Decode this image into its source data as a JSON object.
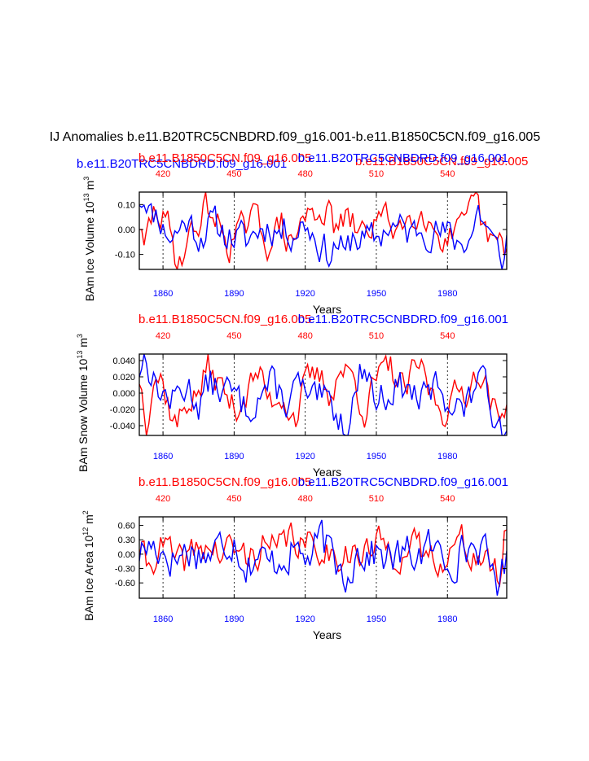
{
  "page_title": "IJ Anomalies b.e11.B20TRC5CNBDRD.f09_g16.001-b.e11.B1850C5CN.f09_g16.005",
  "colors": {
    "control": "#ff0000",
    "historical": "#0000ff",
    "axis": "#000000",
    "grid": "#000000"
  },
  "header_labels": {
    "historical_run": "b.e11.B20TRC5CNBDRD.f09_g16.001",
    "control_run": "b.e11.B1850C5CN.f09_g16.005"
  },
  "chart_data": [
    {
      "type": "line",
      "name": "ice-volume",
      "ylabel": "BAm Ice Volume 10",
      "ylabel_exp": "13",
      "ylabel_unit": " m",
      "ylabel_unit_exp": "3",
      "xlabel": "Years",
      "ylim": [
        -0.16,
        0.15
      ],
      "yticks": [
        -0.1,
        0.0,
        0.1
      ],
      "ytick_labels": [
        "-0.10",
        "0.00",
        "0.10"
      ],
      "bottom_ticks": [
        1860,
        1890,
        1920,
        1950,
        1980
      ],
      "bottom_tick_labels": [
        "1860",
        "1890",
        "1920",
        "1950",
        "1980"
      ],
      "top_ticks": [
        420,
        450,
        480,
        510,
        540
      ],
      "top_tick_labels": [
        "420",
        "450",
        "480",
        "510",
        "540"
      ],
      "xlim_bottom": [
        1850,
        2005
      ],
      "xlim_top": [
        410,
        565
      ],
      "title_left": "b.e11.B1850C5CN.f09_g16.005",
      "title_left_color": "control",
      "title_right": "b.e11.B20TRC5CNBDRD.f09_g16.001",
      "title_right_color": "historical",
      "series": [
        {
          "name": "b.e11.B20TRC5CNBDRD.f09_g16.001",
          "color": "historical",
          "x_start": 1850,
          "amp": 0.065,
          "seed": 11,
          "knots": [
            [
              0,
              0.13
            ],
            [
              3,
              0.14
            ],
            [
              5,
              0.06
            ],
            [
              8,
              0.07
            ],
            [
              10,
              0.01
            ],
            [
              14,
              -0.03
            ],
            [
              20,
              0.04
            ],
            [
              25,
              -0.02
            ],
            [
              30,
              0.02
            ],
            [
              38,
              -0.02
            ],
            [
              45,
              -0.05
            ],
            [
              50,
              0.0
            ],
            [
              55,
              0.02
            ],
            [
              60,
              -0.01
            ],
            [
              65,
              0.0
            ],
            [
              70,
              0.03
            ],
            [
              76,
              -0.05
            ],
            [
              80,
              -0.1
            ],
            [
              84,
              -0.05
            ],
            [
              87,
              -0.12
            ],
            [
              90,
              -0.02
            ],
            [
              96,
              -0.05
            ],
            [
              100,
              -0.04
            ],
            [
              105,
              0.02
            ],
            [
              110,
              0.0
            ],
            [
              115,
              -0.02
            ],
            [
              120,
              0.02
            ],
            [
              128,
              -0.02
            ],
            [
              135,
              -0.05
            ],
            [
              140,
              -0.02
            ],
            [
              143,
              0.08
            ],
            [
              146,
              0.02
            ],
            [
              150,
              -0.08
            ],
            [
              154,
              -0.12
            ],
            [
              155,
              -0.04
            ]
          ]
        },
        {
          "name": "b.e11.B1850C5CN.f09_g16.005",
          "color": "control",
          "x_start": 1850,
          "amp": 0.06,
          "seed": 29,
          "knots": [
            [
              0,
              0.03
            ],
            [
              2,
              -0.1
            ],
            [
              4,
              0.0
            ],
            [
              7,
              0.08
            ],
            [
              12,
              0.01
            ],
            [
              16,
              -0.13
            ],
            [
              20,
              -0.05
            ],
            [
              24,
              0.0
            ],
            [
              28,
              0.11
            ],
            [
              33,
              0.02
            ],
            [
              38,
              -0.05
            ],
            [
              44,
              0.0
            ],
            [
              50,
              0.04
            ],
            [
              55,
              -0.06
            ],
            [
              60,
              0.02
            ],
            [
              64,
              -0.08
            ],
            [
              68,
              0.03
            ],
            [
              72,
              0.06
            ],
            [
              78,
              0.09
            ],
            [
              82,
              0.01
            ],
            [
              88,
              0.03
            ],
            [
              94,
              -0.02
            ],
            [
              100,
              0.05
            ],
            [
              107,
              0.02
            ],
            [
              113,
              0.03
            ],
            [
              118,
              0.11
            ],
            [
              123,
              0.02
            ],
            [
              130,
              -0.04
            ],
            [
              137,
              -0.01
            ],
            [
              142,
              0.11
            ],
            [
              146,
              -0.03
            ],
            [
              150,
              -0.06
            ],
            [
              153,
              -0.08
            ],
            [
              155,
              -0.07
            ]
          ]
        }
      ]
    },
    {
      "type": "line",
      "name": "snow-volume",
      "ylabel": "BAm Snow Volume 10",
      "ylabel_exp": "13",
      "ylabel_unit": " m",
      "ylabel_unit_exp": "3",
      "xlabel": "Years",
      "ylim": [
        -0.052,
        0.048
      ],
      "yticks": [
        -0.04,
        -0.02,
        0.0,
        0.02,
        0.04
      ],
      "ytick_labels": [
        "-0.040",
        "-0.020",
        "0.000",
        "0.020",
        "0.040"
      ],
      "bottom_ticks": [
        1860,
        1890,
        1920,
        1950,
        1980
      ],
      "bottom_tick_labels": [
        "1860",
        "1890",
        "1920",
        "1950",
        "1980"
      ],
      "top_ticks": [
        420,
        450,
        480,
        510,
        540
      ],
      "top_tick_labels": [
        "420",
        "450",
        "480",
        "510",
        "540"
      ],
      "xlim_bottom": [
        1850,
        2005
      ],
      "xlim_top": [
        410,
        565
      ],
      "title_left": "b.e11.B1850C5CN.f09_g16.005",
      "title_left_color": "control",
      "title_right": "b.e11.B20TRC5CNBDRD.f09_g16.001",
      "title_right_color": "historical",
      "series": [
        {
          "name": "b.e11.B20TRC5CNBDRD.f09_g16.001",
          "color": "historical",
          "x_start": 1850,
          "amp": 0.02,
          "seed": 13,
          "knots": [
            [
              0,
              0.03
            ],
            [
              3,
              0.048
            ],
            [
              6,
              0.015
            ],
            [
              10,
              0.0
            ],
            [
              14,
              -0.01
            ],
            [
              20,
              0.01
            ],
            [
              25,
              -0.01
            ],
            [
              30,
              0.01
            ],
            [
              38,
              0.0
            ],
            [
              45,
              -0.02
            ],
            [
              50,
              0.0
            ],
            [
              55,
              0.01
            ],
            [
              62,
              -0.01
            ],
            [
              68,
              0.01
            ],
            [
              72,
              -0.02
            ],
            [
              76,
              -0.01
            ],
            [
              82,
              -0.02
            ],
            [
              87,
              -0.04
            ],
            [
              90,
              -0.01
            ],
            [
              95,
              0.04
            ],
            [
              100,
              -0.01
            ],
            [
              108,
              0.01
            ],
            [
              115,
              0.0
            ],
            [
              120,
              -0.01
            ],
            [
              126,
              0.01
            ],
            [
              132,
              -0.01
            ],
            [
              137,
              -0.02
            ],
            [
              140,
              -0.01
            ],
            [
              143,
              0.035
            ],
            [
              146,
              0.0
            ],
            [
              150,
              -0.025
            ],
            [
              154,
              -0.04
            ],
            [
              155,
              -0.02
            ]
          ]
        },
        {
          "name": "b.e11.B1850C5CN.f09_g16.005",
          "color": "control",
          "x_start": 1850,
          "amp": 0.018,
          "seed": 37,
          "knots": [
            [
              0,
              0.02
            ],
            [
              3,
              -0.03
            ],
            [
              6,
              0.025
            ],
            [
              9,
              0.02
            ],
            [
              13,
              -0.02
            ],
            [
              16,
              -0.04
            ],
            [
              20,
              -0.01
            ],
            [
              25,
              0.0
            ],
            [
              29,
              0.03
            ],
            [
              34,
              0.01
            ],
            [
              40,
              -0.02
            ],
            [
              45,
              0.0
            ],
            [
              50,
              0.025
            ],
            [
              55,
              -0.01
            ],
            [
              60,
              0.0
            ],
            [
              66,
              -0.03
            ],
            [
              70,
              0.01
            ],
            [
              76,
              0.02
            ],
            [
              80,
              0.0
            ],
            [
              85,
              0.03
            ],
            [
              90,
              0.02
            ],
            [
              95,
              -0.02
            ],
            [
              100,
              0.015
            ],
            [
              106,
              0.03
            ],
            [
              112,
              0.0
            ],
            [
              118,
              0.035
            ],
            [
              123,
              0.0
            ],
            [
              128,
              -0.02
            ],
            [
              135,
              0.0
            ],
            [
              140,
              0.01
            ],
            [
              143,
              0.035
            ],
            [
              148,
              -0.01
            ],
            [
              152,
              -0.04
            ],
            [
              155,
              0.0
            ]
          ]
        }
      ]
    },
    {
      "type": "line",
      "name": "ice-area",
      "ylabel": "BAm Ice Area 10",
      "ylabel_exp": "12",
      "ylabel_unit": " m",
      "ylabel_unit_exp": "2",
      "xlabel": "Years",
      "ylim": [
        -0.92,
        0.78
      ],
      "yticks": [
        -0.6,
        -0.3,
        0.0,
        0.3,
        0.6
      ],
      "ytick_labels": [
        "-0.60",
        "-0.30",
        "0.00",
        "0.30",
        "0.60"
      ],
      "bottom_ticks": [
        1860,
        1890,
        1920,
        1950,
        1980
      ],
      "bottom_tick_labels": [
        "1860",
        "1890",
        "1920",
        "1950",
        "1980"
      ],
      "top_ticks": [
        420,
        450,
        480,
        510,
        540
      ],
      "top_tick_labels": [
        "420",
        "450",
        "480",
        "510",
        "540"
      ],
      "xlim_bottom": [
        1850,
        2005
      ],
      "xlim_top": [
        410,
        565
      ],
      "title_left": "b.e11.B1850C5CN.f09_g16.005",
      "title_left_color": "control",
      "title_right": "b.e11.B20TRC5CNBDRD.f09_g16.001",
      "title_right_color": "historical",
      "series": [
        {
          "name": "b.e11.B20TRC5CNBDRD.f09_g16.001",
          "color": "historical",
          "x_start": 1850,
          "amp": 0.38,
          "seed": 17,
          "knots": [
            [
              0,
              0.05
            ],
            [
              5,
              0.2
            ],
            [
              10,
              0.1
            ],
            [
              15,
              -0.1
            ],
            [
              20,
              0.1
            ],
            [
              30,
              0.0
            ],
            [
              35,
              0.2
            ],
            [
              40,
              0.4
            ],
            [
              45,
              -0.2
            ],
            [
              50,
              0.0
            ],
            [
              55,
              -0.3
            ],
            [
              60,
              0.0
            ],
            [
              65,
              0.1
            ],
            [
              72,
              -0.1
            ],
            [
              77,
              0.3
            ],
            [
              82,
              -0.2
            ],
            [
              87,
              -0.4
            ],
            [
              92,
              0.1
            ],
            [
              100,
              0.0
            ],
            [
              108,
              -0.1
            ],
            [
              115,
              0.0
            ],
            [
              122,
              0.1
            ],
            [
              130,
              -0.1
            ],
            [
              137,
              0.1
            ],
            [
              143,
              0.2
            ],
            [
              147,
              -0.2
            ],
            [
              151,
              -0.5
            ],
            [
              155,
              -0.2
            ]
          ]
        },
        {
          "name": "b.e11.B1850C5CN.f09_g16.005",
          "color": "control",
          "x_start": 1850,
          "amp": 0.33,
          "seed": 41,
          "knots": [
            [
              0,
              0.1
            ],
            [
              4,
              -0.3
            ],
            [
              8,
              0.2
            ],
            [
              12,
              0.1
            ],
            [
              16,
              -0.3
            ],
            [
              22,
              0.0
            ],
            [
              28,
              0.2
            ],
            [
              34,
              0.0
            ],
            [
              40,
              0.1
            ],
            [
              46,
              -0.1
            ],
            [
              52,
              0.2
            ],
            [
              58,
              0.0
            ],
            [
              64,
              0.4
            ],
            [
              70,
              0.1
            ],
            [
              76,
              0.2
            ],
            [
              82,
              0.0
            ],
            [
              88,
              0.1
            ],
            [
              94,
              -0.1
            ],
            [
              100,
              0.2
            ],
            [
              106,
              0.1
            ],
            [
              112,
              0.0
            ],
            [
              118,
              0.1
            ],
            [
              124,
              -0.1
            ],
            [
              130,
              0.1
            ],
            [
              136,
              0.2
            ],
            [
              142,
              0.0
            ],
            [
              148,
              -0.3
            ],
            [
              152,
              -0.5
            ],
            [
              155,
              0.6
            ]
          ]
        }
      ]
    }
  ]
}
